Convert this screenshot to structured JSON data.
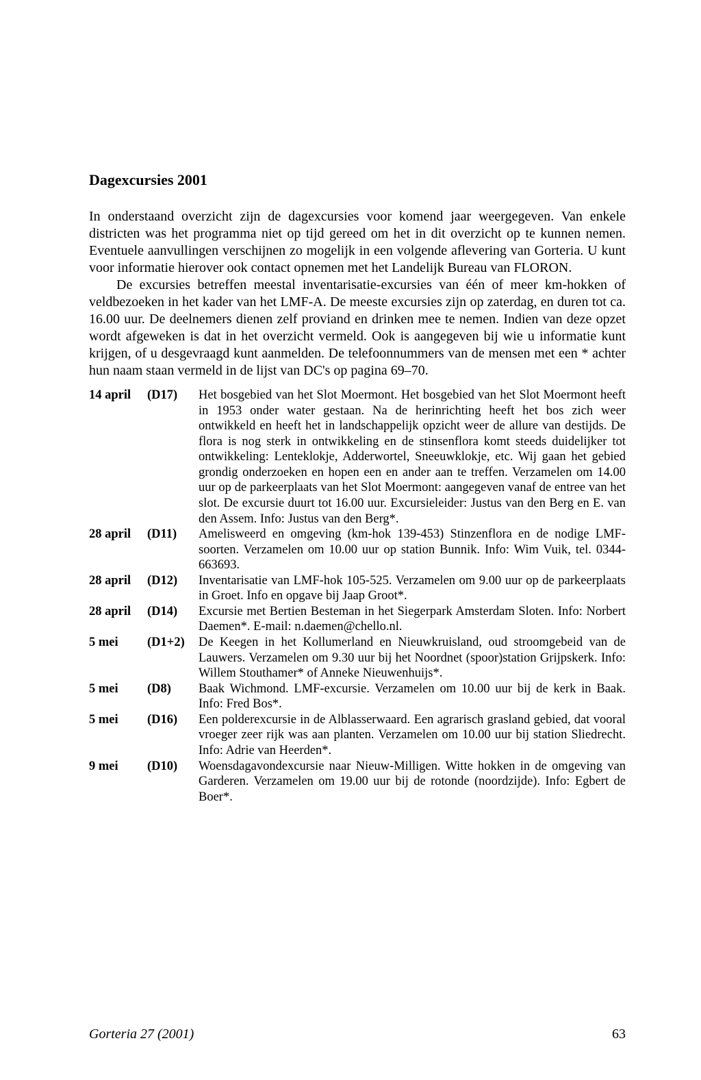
{
  "colors": {
    "background": "#ffffff",
    "text": "#000000"
  },
  "typography": {
    "family": "Times New Roman",
    "title_size_pt": 16,
    "body_size_pt": 14,
    "list_size_pt": 13,
    "footer_size_pt": 14
  },
  "title": "Dagexcursies 2001",
  "paragraphs": {
    "p1": "In onderstaand overzicht zijn de dagexcursies voor komend jaar weergegeven. Van enkele districten was het programma niet op tijd gereed om het in dit overzicht op te kunnen nemen. Eventuele aanvullingen verschijnen zo mogelijk in een volgende aflevering van Gorteria. U kunt voor informatie hierover ook contact opnemen met het Landelijk Bureau van FLORON.",
    "p2": "De excursies betreffen meestal inventarisatie-excursies van één of meer km-hokken of veldbezoeken in het kader van het LMF-A. De meeste excursies zijn op zaterdag, en duren tot ca. 16.00 uur. De deelnemers dienen zelf proviand en drinken mee te nemen. Indien van deze opzet wordt afgeweken is dat in het overzicht vermeld. Ook is aangegeven bij wie u informatie kunt krijgen, of u desgevraagd kunt aanmelden. De telefoonnummers van de mensen met een * achter hun naam staan vermeld in de lijst van DC's op pagina 69–70."
  },
  "excursions": [
    {
      "date": "14 april",
      "code": "(D17)",
      "desc": "Het bosgebied van het Slot Moermont. Het bosgebied van het Slot Moermont heeft in 1953 onder water gestaan. Na de herinrichting heeft het bos zich weer ontwikkeld en heeft het in landschappelijk opzicht weer de allure van destijds. De flora is nog sterk in ontwikkeling en de stinsenflora komt steeds duidelijker tot ontwikkeling: Lenteklokje, Adderwortel, Sneeuwklokje, etc. Wij gaan het gebied grondig onderzoeken en hopen een en ander aan te treffen. Verzamelen om 14.00 uur op de parkeerplaats van het Slot Moermont: aangegeven vanaf de entree van het slot. De excursie duurt tot 16.00 uur. Excursieleider: Justus van den Berg en E. van den Assem. Info: Justus van den Berg*."
    },
    {
      "date": "28 april",
      "code": "(D11)",
      "desc": "Amelisweerd en omgeving (km-hok 139-453) Stinzenflora en de nodige LMF-soorten. Verzamelen om 10.00 uur op station Bunnik. Info: Wim Vuik, tel. 0344-663693."
    },
    {
      "date": "28 april",
      "code": "(D12)",
      "desc": "Inventarisatie van LMF-hok 105-525. Verzamelen om 9.00 uur op de parkeerplaats in Groet. Info en opgave bij Jaap Groot*."
    },
    {
      "date": "28 april",
      "code": "(D14)",
      "desc": "Excursie met Bertien Besteman in het Siegerpark Amsterdam Sloten. Info: Norbert Daemen*. E-mail: n.daemen@chello.nl."
    },
    {
      "date": "5 mei",
      "code": "(D1+2)",
      "desc": "De Keegen in het Kollumerland en Nieuwkruisland, oud stroomgebeid van de Lauwers. Verzamelen om 9.30 uur bij het Noordnet (spoor)station Grijpskerk. Info: Willem Stouthamer* of Anneke Nieuwenhuijs*."
    },
    {
      "date": "5 mei",
      "code": "(D8)",
      "desc": "Baak Wichmond. LMF-excursie. Verzamelen om 10.00 uur bij de kerk in Baak. Info: Fred Bos*."
    },
    {
      "date": "5 mei",
      "code": "(D16)",
      "desc": "Een polderexcursie in de Alblasserwaard. Een agrarisch grasland gebied, dat vooral vroeger zeer rijk was aan planten. Verzamelen om 10.00 uur bij station Sliedrecht. Info: Adrie van Heerden*."
    },
    {
      "date": "9 mei",
      "code": "(D10)",
      "desc": "Woensdagavondexcursie naar Nieuw-Milligen. Witte hokken in de omgeving van Garderen. Verzamelen om 19.00 uur bij de rotonde (noordzijde). Info: Egbert de Boer*."
    }
  ],
  "footer": {
    "journal": "Gorteria 27 (2001)",
    "page": "63"
  }
}
